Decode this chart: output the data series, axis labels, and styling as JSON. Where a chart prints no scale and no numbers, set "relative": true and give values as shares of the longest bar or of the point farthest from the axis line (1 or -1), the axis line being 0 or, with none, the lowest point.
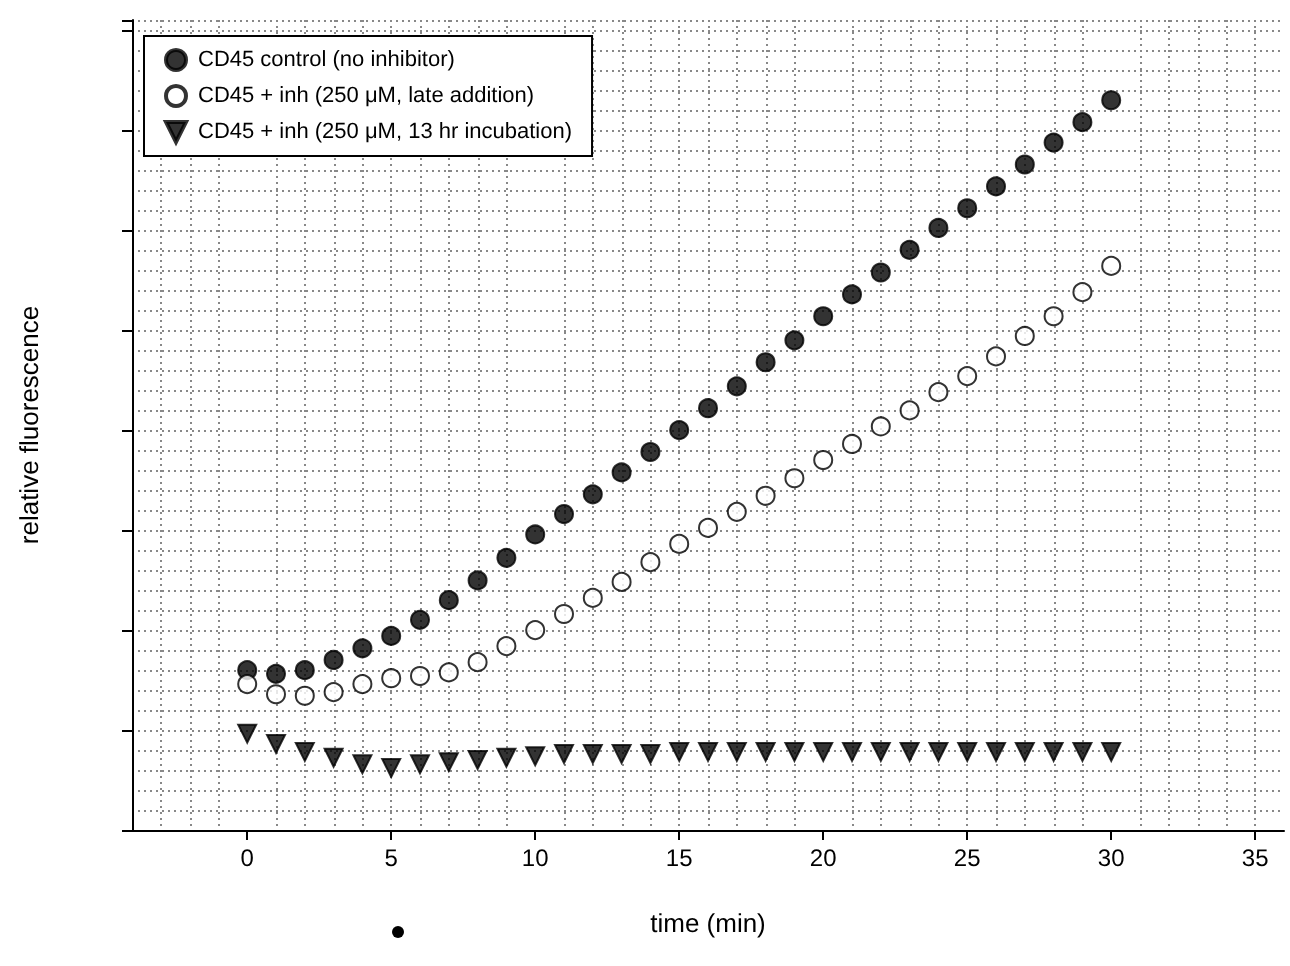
{
  "chart_data": {
    "type": "scatter",
    "relative": true,
    "xlabel": "time (min)",
    "ylabel": "relative fluorescence",
    "xlim": [
      -4,
      36
    ],
    "xticks": [
      0,
      5,
      10,
      15,
      20,
      25,
      30,
      35
    ],
    "grid": true,
    "legend": "top left",
    "x": [
      0,
      1,
      2,
      3,
      4,
      5,
      6,
      7,
      8,
      9,
      10,
      11,
      12,
      13,
      14,
      15,
      16,
      17,
      18,
      19,
      20,
      21,
      22,
      23,
      24,
      25,
      26,
      27,
      28,
      29,
      30
    ],
    "series": [
      {
        "name": "CD45 control (no inhibitor)",
        "color": "#000000",
        "marker": "circle",
        "values": [
          0.219,
          0.214,
          0.219,
          0.233,
          0.249,
          0.266,
          0.288,
          0.315,
          0.342,
          0.373,
          0.405,
          0.433,
          0.46,
          0.49,
          0.518,
          0.548,
          0.578,
          0.608,
          0.641,
          0.671,
          0.704,
          0.734,
          0.764,
          0.795,
          0.825,
          0.852,
          0.882,
          0.912,
          0.942,
          0.97,
          1
        ]
      },
      {
        "name": "CD45 + inh (250 μM, late addition)",
        "color": "#ffffff",
        "marker": "circle",
        "values": [
          0.2,
          0.186,
          0.184,
          0.189,
          0.2,
          0.208,
          0.211,
          0.216,
          0.23,
          0.252,
          0.274,
          0.296,
          0.318,
          0.34,
          0.367,
          0.392,
          0.414,
          0.436,
          0.458,
          0.482,
          0.507,
          0.529,
          0.553,
          0.575,
          0.6,
          0.622,
          0.649,
          0.677,
          0.704,
          0.737,
          0.773
        ]
      },
      {
        "name": "CD45 + inh (250 μM, 13 hr incubation)",
        "color": "#000000",
        "marker": "triangle",
        "values": [
          0.132,
          0.118,
          0.107,
          0.099,
          0.09,
          0.085,
          0.09,
          0.093,
          0.096,
          0.099,
          0.101,
          0.104,
          0.104,
          0.104,
          0.104,
          0.107,
          0.107,
          0.107,
          0.107,
          0.107,
          0.107,
          0.107,
          0.107,
          0.107,
          0.107,
          0.107,
          0.107,
          0.107,
          0.107,
          0.107,
          0.107
        ]
      }
    ]
  }
}
